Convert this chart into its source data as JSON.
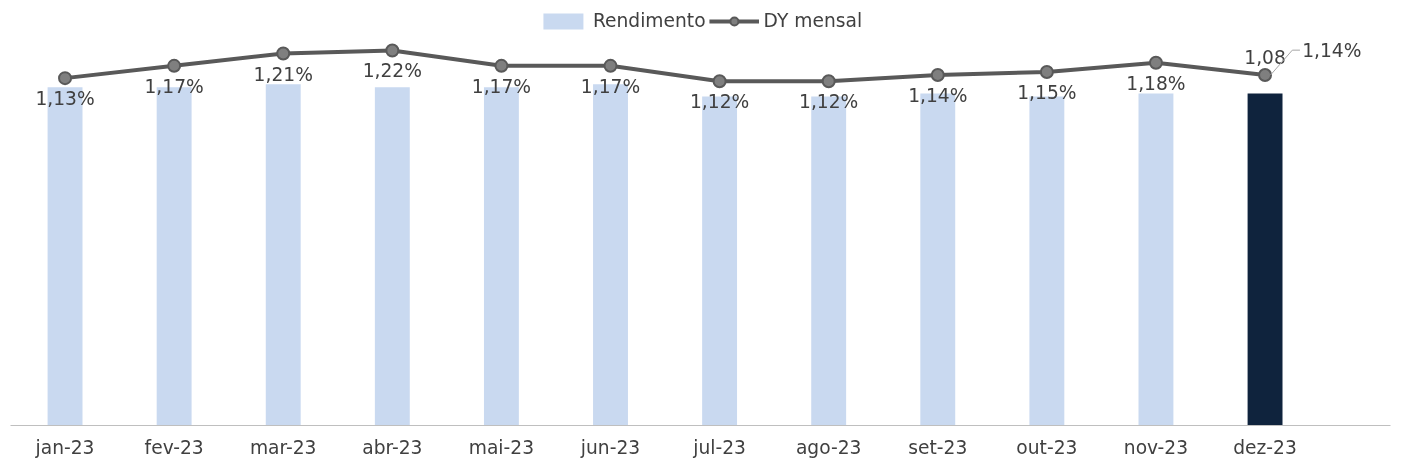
{
  "chart_data": {
    "type": "bar",
    "categories": [
      "jan-23",
      "fev-23",
      "mar-23",
      "abr-23",
      "mai-23",
      "jun-23",
      "jul-23",
      "ago-23",
      "set-23",
      "out-23",
      "nov-23",
      "dez-23"
    ],
    "ylim": [
      0,
      1.35
    ],
    "tick_labels": "x",
    "legend": "top",
    "series": [
      {
        "name": "Rendimento",
        "colors": [
          "#c9d9f0",
          "#c9d9f0",
          "#c9d9f0",
          "#c9d9f0",
          "#c9d9f0",
          "#c9d9f0",
          "#c9d9f0",
          "#c9d9f0",
          "#c9d9f0",
          "#c9d9f0",
          "#c9d9f0",
          "#0f233d"
        ],
        "values": [
          1.1,
          1.1,
          1.11,
          1.1,
          1.1,
          1.11,
          1.07,
          1.07,
          1.08,
          1.07,
          1.08,
          1.08
        ],
        "value_labels": [
          null,
          null,
          null,
          null,
          null,
          null,
          null,
          null,
          null,
          null,
          null,
          "1,08"
        ]
      },
      {
        "name": "DY mensal",
        "type": "line",
        "color": "#595959",
        "marker": "circle",
        "line_style": "solid",
        "values": [
          1.13,
          1.17,
          1.21,
          1.22,
          1.17,
          1.17,
          1.12,
          1.12,
          1.14,
          1.15,
          1.18,
          1.14
        ],
        "value_labels": [
          "1,13%",
          "1,17%",
          "1,21%",
          "1,22%",
          "1,17%",
          "1,17%",
          "1,12%",
          "1,12%",
          "1,14%",
          "1,15%",
          "1,18%",
          "1,14%"
        ]
      }
    ]
  }
}
